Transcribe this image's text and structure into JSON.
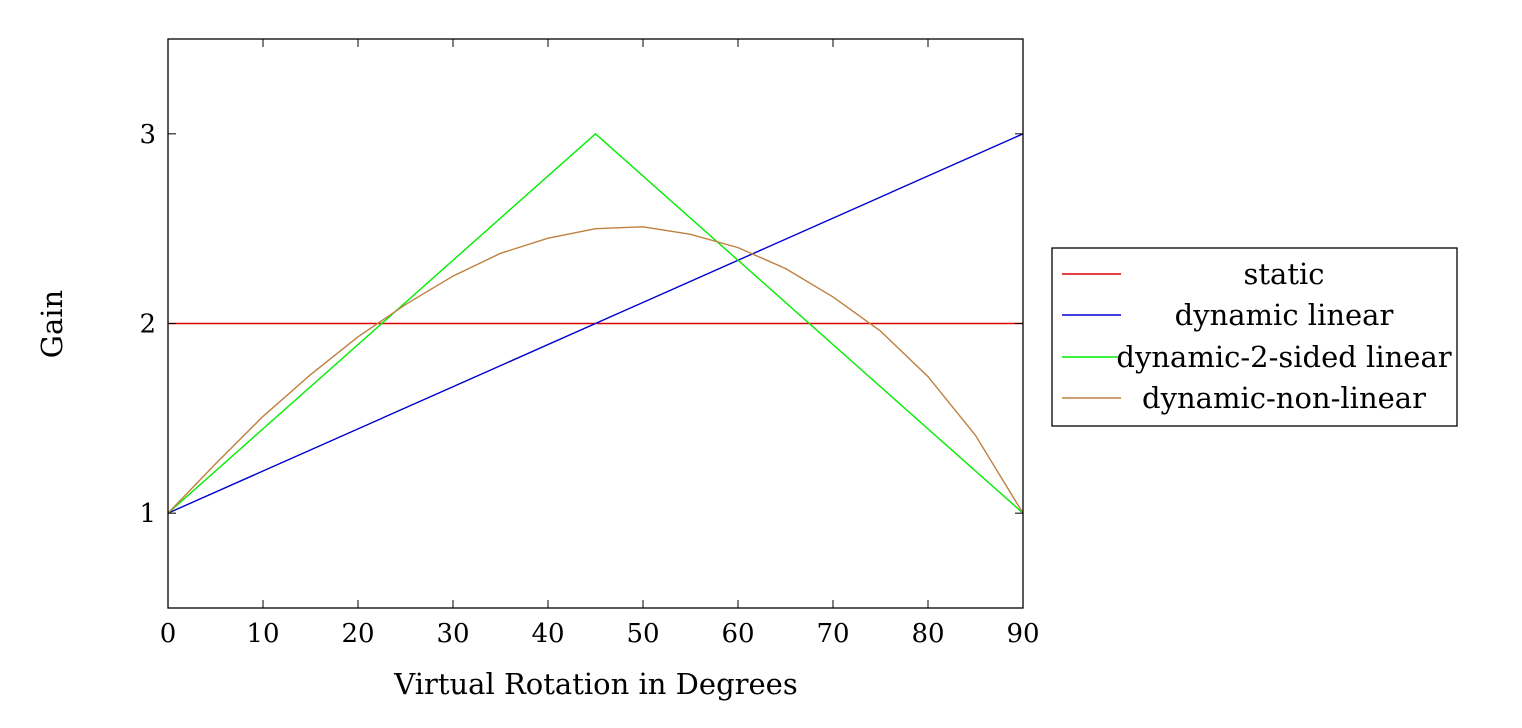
{
  "chart_data": {
    "type": "line",
    "title": "",
    "xlabel": "Virtual Rotation in Degrees",
    "ylabel": "Gain",
    "xlim": [
      0,
      90
    ],
    "ylim": [
      0.5,
      3.5
    ],
    "xticks": [
      0,
      10,
      20,
      30,
      40,
      50,
      60,
      70,
      80,
      90
    ],
    "yticks": [
      1,
      2,
      3
    ],
    "grid": false,
    "legend_position": "outside-right",
    "series": [
      {
        "name": "static",
        "color": "#e00000",
        "x": [
          0,
          90
        ],
        "y": [
          2,
          2
        ]
      },
      {
        "name": "dynamic linear",
        "color": "#0000d0",
        "x": [
          0,
          90
        ],
        "y": [
          1,
          3
        ]
      },
      {
        "name": "dynamic-2-sided linear",
        "color": "#00ee00",
        "x": [
          0,
          45,
          90
        ],
        "y": [
          1,
          3,
          1
        ]
      },
      {
        "name": "dynamic-non-linear",
        "color": "#bf8040",
        "x": [
          0,
          5,
          10,
          15,
          20,
          25,
          30,
          35,
          40,
          45,
          50,
          55,
          60,
          65,
          70,
          75,
          80,
          85,
          90
        ],
        "y": [
          1.0,
          1.26,
          1.51,
          1.73,
          1.93,
          2.1,
          2.25,
          2.37,
          2.45,
          2.5,
          2.51,
          2.47,
          2.4,
          2.29,
          2.14,
          1.96,
          1.72,
          1.41,
          1.0
        ]
      }
    ]
  }
}
